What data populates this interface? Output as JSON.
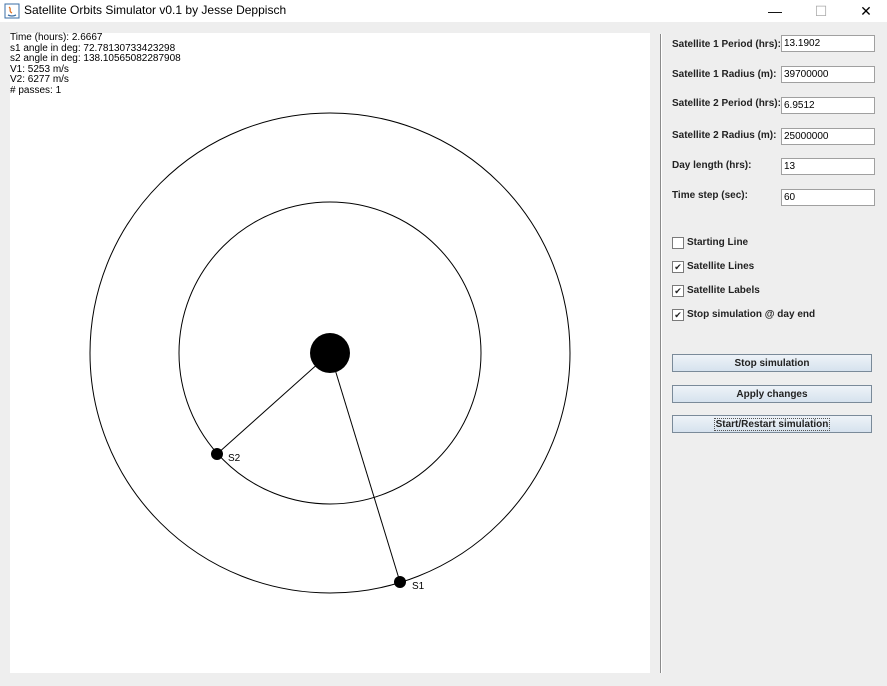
{
  "window": {
    "title": "Satellite Orbits Simulator v0.1 by Jesse Deppisch",
    "minimize_glyph": "—",
    "maximize_glyph": "☐",
    "close_glyph": "✕"
  },
  "info": {
    "time": "Time (hours): 2.6667",
    "s1_angle": "s1 angle in deg: 72.78130733423298",
    "s2_angle": "s2 angle in deg: 138.10565082287908",
    "v1": "V1: 5253 m/s",
    "v2": "V2: 6277 m/s",
    "passes": "# passes: 1"
  },
  "simulation": {
    "satellite_labels": [
      "S2",
      "S1"
    ]
  },
  "fields": [
    {
      "label": "Satellite 1 Period (hrs):",
      "value": "13.1902"
    },
    {
      "label": "Satellite 1 Radius (m):",
      "value": "39700000"
    },
    {
      "label": "Satellite 2 Period (hrs):",
      "value": "6.9512"
    },
    {
      "label": "Satellite 2 Radius (m):",
      "value": "25000000"
    },
    {
      "label": "Day length (hrs):",
      "value": "13"
    },
    {
      "label": "Time step (sec):",
      "value": "60"
    }
  ],
  "checkboxes": [
    {
      "label": "Starting Line",
      "checked": false,
      "mark": ""
    },
    {
      "label": "Satellite Lines",
      "checked": true,
      "mark": "✔"
    },
    {
      "label": "Satellite Labels",
      "checked": true,
      "mark": "✔"
    },
    {
      "label": "Stop simulation @ day end",
      "checked": true,
      "mark": "✔"
    }
  ],
  "buttons": {
    "stop": "Stop simulation",
    "apply": "Apply changes",
    "restart": "Start/Restart simulation"
  }
}
